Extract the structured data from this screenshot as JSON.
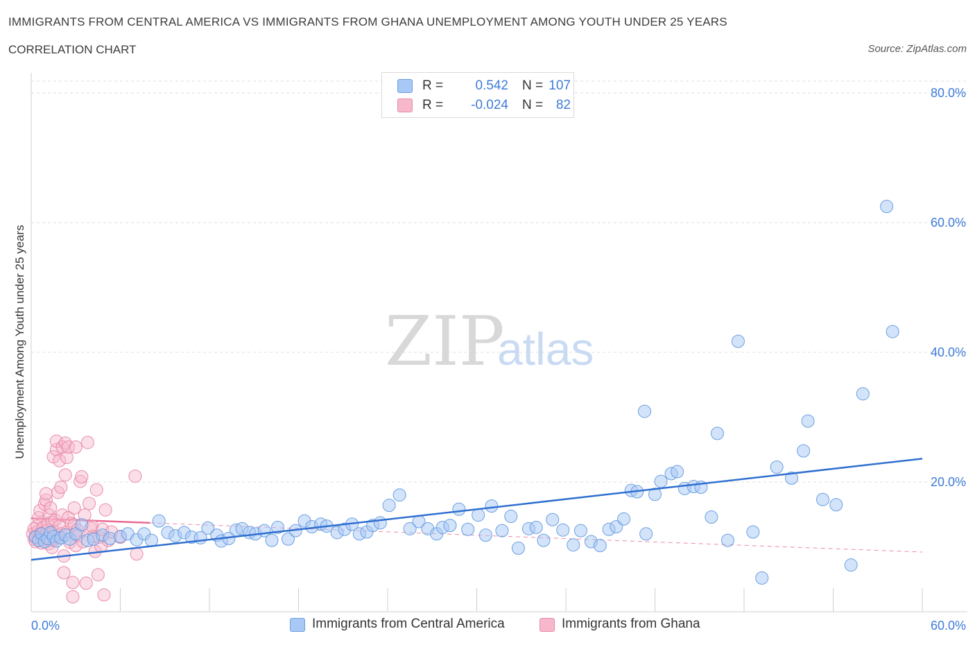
{
  "title": "IMMIGRANTS FROM CENTRAL AMERICA VS IMMIGRANTS FROM GHANA UNEMPLOYMENT AMONG YOUTH UNDER 25 YEARS",
  "subtitle": "CORRELATION CHART",
  "source": "Source: ZipAtlas.com",
  "watermark": {
    "zip": "ZIP",
    "atlas": "atlas"
  },
  "legend": {
    "rows": [
      {
        "r_label": "R =",
        "r_value": "0.542",
        "n_label": "N =",
        "n_value": "107",
        "color": "#a8c8f5",
        "border": "#6a9fe0"
      },
      {
        "r_label": "R =",
        "r_value": "-0.024",
        "n_label": "N =",
        "n_value": "82",
        "color": "#f7b8cc",
        "border": "#e88aa8"
      }
    ]
  },
  "bottom_legend": [
    {
      "label": "Immigrants from Central America",
      "color": "#a8c8f5",
      "border": "#6a9fe0"
    },
    {
      "label": "Immigrants from Ghana",
      "color": "#f7b8cc",
      "border": "#e88aa8"
    }
  ],
  "chart_data": {
    "type": "scatter",
    "title": "IMMIGRANTS FROM CENTRAL AMERICA VS IMMIGRANTS FROM GHANA UNEMPLOYMENT AMONG YOUTH UNDER 25 YEARS",
    "xlabel": "",
    "ylabel": "Unemployment Among Youth under 25 years",
    "xlim": [
      0,
      60
    ],
    "ylim": [
      0,
      80
    ],
    "x_tick_labels": [
      "0.0%",
      "60.0%"
    ],
    "y_tick_values": [
      20,
      40,
      60,
      80
    ],
    "y_tick_labels": [
      "20.0%",
      "40.0%",
      "60.0%",
      "80.0%"
    ],
    "grid": true,
    "colors": {
      "blue_fill": "#a8c8f5",
      "blue_stroke": "#6a9fe0",
      "blue_line": "#2f6fd0",
      "pink_fill": "#f7b8cc",
      "pink_stroke": "#e88aa8",
      "pink_line": "#e86a94",
      "tick_label": "#3d7bd8",
      "grid": "#dcdcdc"
    },
    "series": [
      {
        "name": "Immigrants from Central America",
        "points": [
          [
            0.3,
            11.5
          ],
          [
            0.5,
            11.0
          ],
          [
            0.7,
            12.0
          ],
          [
            0.9,
            10.8
          ],
          [
            1.1,
            11.3
          ],
          [
            1.3,
            12.2
          ],
          [
            1.5,
            11.6
          ],
          [
            1.7,
            10.9
          ],
          [
            2.0,
            11.4
          ],
          [
            2.3,
            11.8
          ],
          [
            2.6,
            11.2
          ],
          [
            3.0,
            12.0
          ],
          [
            3.4,
            13.4
          ],
          [
            3.8,
            11.0
          ],
          [
            4.2,
            11.2
          ],
          [
            4.8,
            11.8
          ],
          [
            5.3,
            11.3
          ],
          [
            6.0,
            11.6
          ],
          [
            6.5,
            12.0
          ],
          [
            7.1,
            11.1
          ],
          [
            7.6,
            12.0
          ],
          [
            8.1,
            11.0
          ],
          [
            8.6,
            14.0
          ],
          [
            9.2,
            12.2
          ],
          [
            9.7,
            11.7
          ],
          [
            10.3,
            12.2
          ],
          [
            10.8,
            11.5
          ],
          [
            11.4,
            11.4
          ],
          [
            11.9,
            12.9
          ],
          [
            12.5,
            11.8
          ],
          [
            12.8,
            10.9
          ],
          [
            13.3,
            11.3
          ],
          [
            13.8,
            12.6
          ],
          [
            14.2,
            12.8
          ],
          [
            14.7,
            12.2
          ],
          [
            15.1,
            12.0
          ],
          [
            15.7,
            12.5
          ],
          [
            16.2,
            11.0
          ],
          [
            16.6,
            13.0
          ],
          [
            17.3,
            11.2
          ],
          [
            17.8,
            12.5
          ],
          [
            18.4,
            14.0
          ],
          [
            18.9,
            13.1
          ],
          [
            19.5,
            13.5
          ],
          [
            19.9,
            13.2
          ],
          [
            20.6,
            12.2
          ],
          [
            21.1,
            12.7
          ],
          [
            21.6,
            13.5
          ],
          [
            22.1,
            12.0
          ],
          [
            22.6,
            12.3
          ],
          [
            23.0,
            13.3
          ],
          [
            23.5,
            13.7
          ],
          [
            24.1,
            16.4
          ],
          [
            24.8,
            18.0
          ],
          [
            25.5,
            12.8
          ],
          [
            26.1,
            13.9
          ],
          [
            26.7,
            12.8
          ],
          [
            27.3,
            12.0
          ],
          [
            27.7,
            13.0
          ],
          [
            28.2,
            13.3
          ],
          [
            28.8,
            15.8
          ],
          [
            29.4,
            12.7
          ],
          [
            30.1,
            14.9
          ],
          [
            30.6,
            11.8
          ],
          [
            31.0,
            16.3
          ],
          [
            31.7,
            12.5
          ],
          [
            32.3,
            14.7
          ],
          [
            32.8,
            9.8
          ],
          [
            33.5,
            12.8
          ],
          [
            34.0,
            13.0
          ],
          [
            34.5,
            11.0
          ],
          [
            35.1,
            14.2
          ],
          [
            35.8,
            12.6
          ],
          [
            36.5,
            10.3
          ],
          [
            37.0,
            12.5
          ],
          [
            37.7,
            10.8
          ],
          [
            38.3,
            10.2
          ],
          [
            38.9,
            12.7
          ],
          [
            39.4,
            13.1
          ],
          [
            39.9,
            14.3
          ],
          [
            40.4,
            18.7
          ],
          [
            40.8,
            18.5
          ],
          [
            41.4,
            12.0
          ],
          [
            42.0,
            18.1
          ],
          [
            42.4,
            20.1
          ],
          [
            43.1,
            21.3
          ],
          [
            43.5,
            21.6
          ],
          [
            44.0,
            19.0
          ],
          [
            44.6,
            19.3
          ],
          [
            45.1,
            19.2
          ],
          [
            45.8,
            14.6
          ],
          [
            46.2,
            27.5
          ],
          [
            46.9,
            11.0
          ],
          [
            47.6,
            41.7
          ],
          [
            48.6,
            12.3
          ],
          [
            49.2,
            5.2
          ],
          [
            50.2,
            22.3
          ],
          [
            51.2,
            20.6
          ],
          [
            52.0,
            24.8
          ],
          [
            52.3,
            29.4
          ],
          [
            53.3,
            17.3
          ],
          [
            54.2,
            16.5
          ],
          [
            55.2,
            7.2
          ],
          [
            56.0,
            33.6
          ],
          [
            57.6,
            62.5
          ],
          [
            58.0,
            43.2
          ],
          [
            41.3,
            30.9
          ]
        ]
      },
      {
        "name": "Immigrants from Ghana",
        "points": [
          [
            0.1,
            12.0
          ],
          [
            0.2,
            11.2
          ],
          [
            0.2,
            12.8
          ],
          [
            0.3,
            10.8
          ],
          [
            0.3,
            11.6
          ],
          [
            0.4,
            12.3
          ],
          [
            0.4,
            13.2
          ],
          [
            0.5,
            11.0
          ],
          [
            0.5,
            14.5
          ],
          [
            0.6,
            12.0
          ],
          [
            0.6,
            15.6
          ],
          [
            0.7,
            11.4
          ],
          [
            0.7,
            10.6
          ],
          [
            0.8,
            13.0
          ],
          [
            0.8,
            12.2
          ],
          [
            0.9,
            11.8
          ],
          [
            0.9,
            16.6
          ],
          [
            1.0,
            17.2
          ],
          [
            1.0,
            18.2
          ],
          [
            1.1,
            13.6
          ],
          [
            1.1,
            12.6
          ],
          [
            1.2,
            10.5
          ],
          [
            1.2,
            14.9
          ],
          [
            1.3,
            11.0
          ],
          [
            1.3,
            16.0
          ],
          [
            1.4,
            13.8
          ],
          [
            1.4,
            9.9
          ],
          [
            1.5,
            12.4
          ],
          [
            1.5,
            23.9
          ],
          [
            1.6,
            11.2
          ],
          [
            1.6,
            14.1
          ],
          [
            1.7,
            25.0
          ],
          [
            1.7,
            26.3
          ],
          [
            1.8,
            18.4
          ],
          [
            1.8,
            11.7
          ],
          [
            1.9,
            23.3
          ],
          [
            1.9,
            13.2
          ],
          [
            2.0,
            12.0
          ],
          [
            2.0,
            19.2
          ],
          [
            2.1,
            25.4
          ],
          [
            2.1,
            14.9
          ],
          [
            2.2,
            6.0
          ],
          [
            2.2,
            8.6
          ],
          [
            2.3,
            21.1
          ],
          [
            2.3,
            26.0
          ],
          [
            2.4,
            23.8
          ],
          [
            2.4,
            12.3
          ],
          [
            2.5,
            14.5
          ],
          [
            2.5,
            25.4
          ],
          [
            2.6,
            10.7
          ],
          [
            2.7,
            13.6
          ],
          [
            2.8,
            4.5
          ],
          [
            2.8,
            2.3
          ],
          [
            2.9,
            16.0
          ],
          [
            2.9,
            13.4
          ],
          [
            3.0,
            10.2
          ],
          [
            3.0,
            25.4
          ],
          [
            3.1,
            12.6
          ],
          [
            3.2,
            11.8
          ],
          [
            3.3,
            20.1
          ],
          [
            3.4,
            20.8
          ],
          [
            3.5,
            10.8
          ],
          [
            3.6,
            14.9
          ],
          [
            3.7,
            4.4
          ],
          [
            3.8,
            26.1
          ],
          [
            3.9,
            16.7
          ],
          [
            4.0,
            12.9
          ],
          [
            4.1,
            13.2
          ],
          [
            4.2,
            11.6
          ],
          [
            4.3,
            9.3
          ],
          [
            4.4,
            18.8
          ],
          [
            4.5,
            5.7
          ],
          [
            4.6,
            11.5
          ],
          [
            4.7,
            10.1
          ],
          [
            4.8,
            12.7
          ],
          [
            4.9,
            2.6
          ],
          [
            5.0,
            15.7
          ],
          [
            5.2,
            11.0
          ],
          [
            5.4,
            12.3
          ],
          [
            7.1,
            8.9
          ],
          [
            7.0,
            20.9
          ],
          [
            6.0,
            11.5
          ]
        ]
      }
    ],
    "trendlines": [
      {
        "series": "Immigrants from Central America",
        "from": [
          0,
          8.0
        ],
        "to": [
          60,
          23.6
        ]
      },
      {
        "series": "Immigrants from Ghana",
        "from": [
          0,
          14.4
        ],
        "to": [
          8,
          13.7
        ]
      },
      {
        "series": "Immigrants from Ghana (extended)",
        "from": [
          8,
          13.7
        ],
        "to": [
          60,
          9.2
        ]
      }
    ]
  }
}
